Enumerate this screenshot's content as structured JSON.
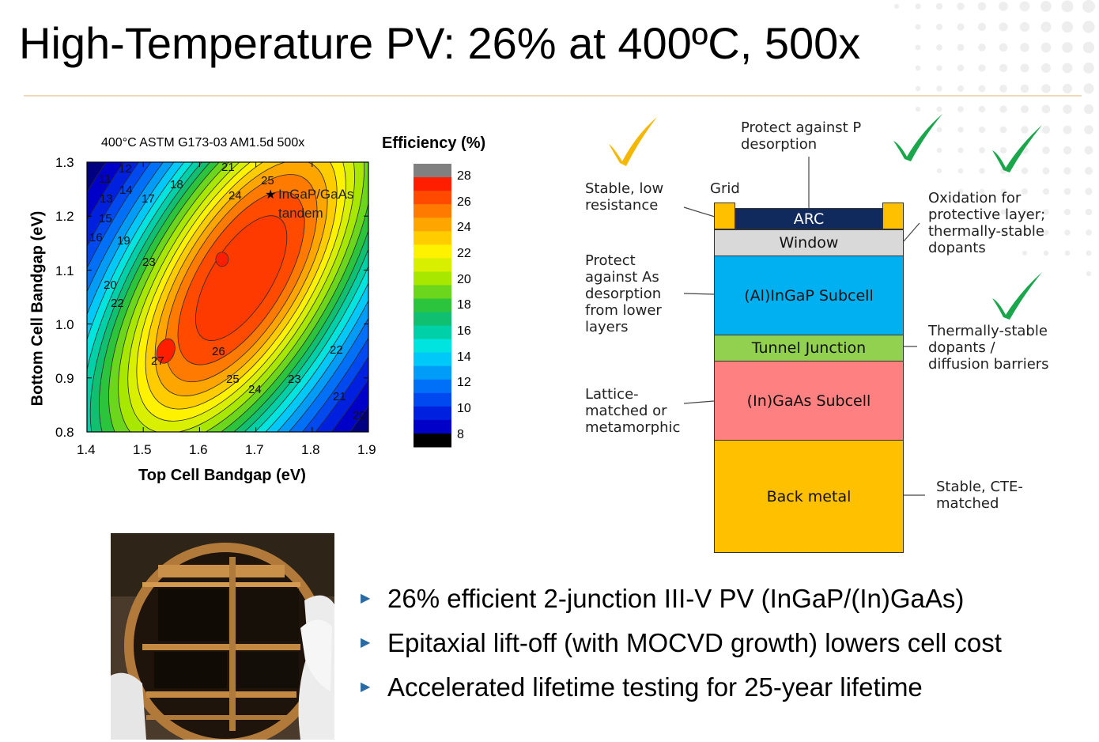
{
  "slide": {
    "title": "High-Temperature PV: 26% at 400ºC, 500x"
  },
  "chart_data": {
    "type": "heatmap",
    "title": "400°C ASTM G173-03 AM1.5d 500x",
    "xlabel": "Top Cell Bandgap (eV)",
    "ylabel": "Bottom Cell Bandgap (eV)",
    "xlim": [
      1.4,
      1.9
    ],
    "ylim": [
      0.8,
      1.3
    ],
    "x_ticks": [
      "1.4",
      "1.5",
      "1.6",
      "1.7",
      "1.8",
      "1.9"
    ],
    "y_ticks": [
      "0.8",
      "0.9",
      "1.0",
      "1.1",
      "1.2",
      "1.3"
    ],
    "colorbar": {
      "title": "Efficiency (%)",
      "ticks": [
        "28",
        "26",
        "24",
        "22",
        "20",
        "18",
        "16",
        "14",
        "12",
        "10",
        "8"
      ],
      "colors": [
        "#808080",
        "#ff1f00",
        "#ff4a00",
        "#ff7a00",
        "#ffa500",
        "#ffcc00",
        "#fff200",
        "#d8f000",
        "#a8e800",
        "#6cd61c",
        "#2cc43c",
        "#10c070",
        "#00d0a8",
        "#00e4e0",
        "#00c8f8",
        "#009cf8",
        "#0070f8",
        "#0048f0",
        "#0020e0",
        "#0000c8",
        "#000000"
      ]
    },
    "contour_labels": [
      "11",
      "12",
      "13",
      "14",
      "15",
      "16",
      "17",
      "18",
      "19",
      "20",
      "20",
      "21",
      "21",
      "22",
      "22",
      "23",
      "23",
      "24",
      "24",
      "25",
      "25",
      "26",
      "27"
    ],
    "peak": {
      "x": 1.54,
      "y": 0.95,
      "value": 27
    },
    "secondary_peak": {
      "x": 1.64,
      "y": 1.12
    },
    "annotation": {
      "label_line1": "InGaP/GaAs",
      "label_line2": "tandem",
      "marker": "★",
      "x": 1.73,
      "y": 1.245
    }
  },
  "diagram": {
    "layers": [
      {
        "label": "ARC",
        "color": "#102a5e",
        "text_color": "#ffffff"
      },
      {
        "label": "Window",
        "color": "#d9d9d9",
        "text_color": "#111111"
      },
      {
        "label": "(Al)InGaP Subcell",
        "color": "#00b0f0",
        "text_color": "#111111"
      },
      {
        "label": "Tunnel Junction",
        "color": "#92d050",
        "text_color": "#111111"
      },
      {
        "label": "(In)GaAs Subcell",
        "color": "#ff8080",
        "text_color": "#111111"
      },
      {
        "label": "Back metal",
        "color": "#ffc000",
        "text_color": "#111111"
      }
    ],
    "grid_label": "Grid",
    "grid_color": "#ffc000",
    "annotations": {
      "stable_low_resistance": [
        "Stable, low",
        "resistance"
      ],
      "protect_p": [
        "Protect against P",
        "desorption"
      ],
      "oxidation": [
        "Oxidation for",
        "protective layer;",
        "thermally-stable",
        "dopants"
      ],
      "protect_as": [
        "Protect",
        "against As",
        "desorption",
        "from lower",
        "layers"
      ],
      "thermally_stable": [
        "Thermally-stable",
        "dopants /",
        "diffusion barriers"
      ],
      "lattice": [
        "Lattice-",
        "matched or",
        "metamorphic"
      ],
      "stable_cte": [
        "Stable, CTE-",
        "matched"
      ]
    },
    "checkmarks": [
      {
        "color": "#f5b800"
      },
      {
        "color": "#1aa64a"
      },
      {
        "color": "#1aa64a"
      },
      {
        "color": "#1aa64a"
      }
    ]
  },
  "bullets": [
    "26% efficient 2-junction III-V PV (InGaP/(In)GaAs)",
    "Epitaxial lift-off (with MOCVD growth) lowers cell cost",
    "Accelerated lifetime testing for 25-year lifetime"
  ]
}
